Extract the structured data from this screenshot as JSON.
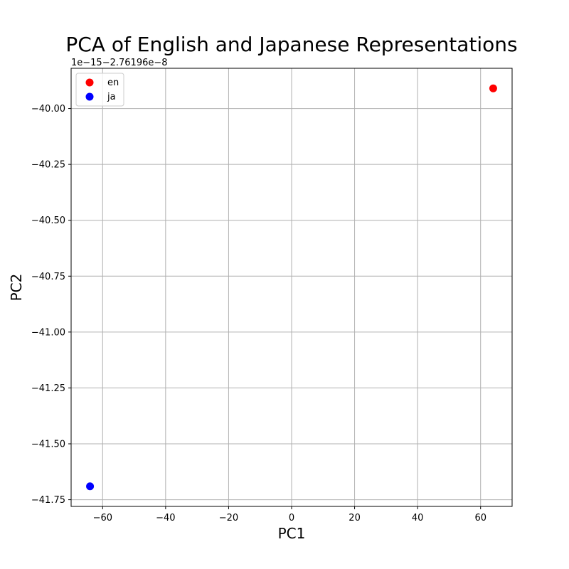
{
  "chart_data": {
    "type": "scatter",
    "title": "PCA of English and Japanese Representations",
    "xlabel": "PC1",
    "ylabel": "PC2",
    "y_offset_label": "1e−15−2.76196e−8",
    "xlim": [
      -70,
      70
    ],
    "ylim": [
      -41.78,
      -39.82
    ],
    "xticks": [
      -60,
      -40,
      -20,
      0,
      20,
      40,
      60
    ],
    "xtick_labels": [
      "−60",
      "−40",
      "−20",
      "0",
      "20",
      "40",
      "60"
    ],
    "yticks": [
      -40.0,
      -40.25,
      -40.5,
      -40.75,
      -41.0,
      -41.25,
      -41.5,
      -41.75
    ],
    "ytick_labels": [
      "−40.00",
      "−40.25",
      "−40.50",
      "−40.75",
      "−41.00",
      "−41.25",
      "−41.50",
      "−41.75"
    ],
    "grid": true,
    "legend_position": "top-left",
    "series": [
      {
        "name": "en",
        "color": "#ff0000",
        "points": [
          {
            "x": 64,
            "y": -39.91
          }
        ]
      },
      {
        "name": "ja",
        "color": "#0000ff",
        "points": [
          {
            "x": -64,
            "y": -41.69
          }
        ]
      }
    ]
  }
}
